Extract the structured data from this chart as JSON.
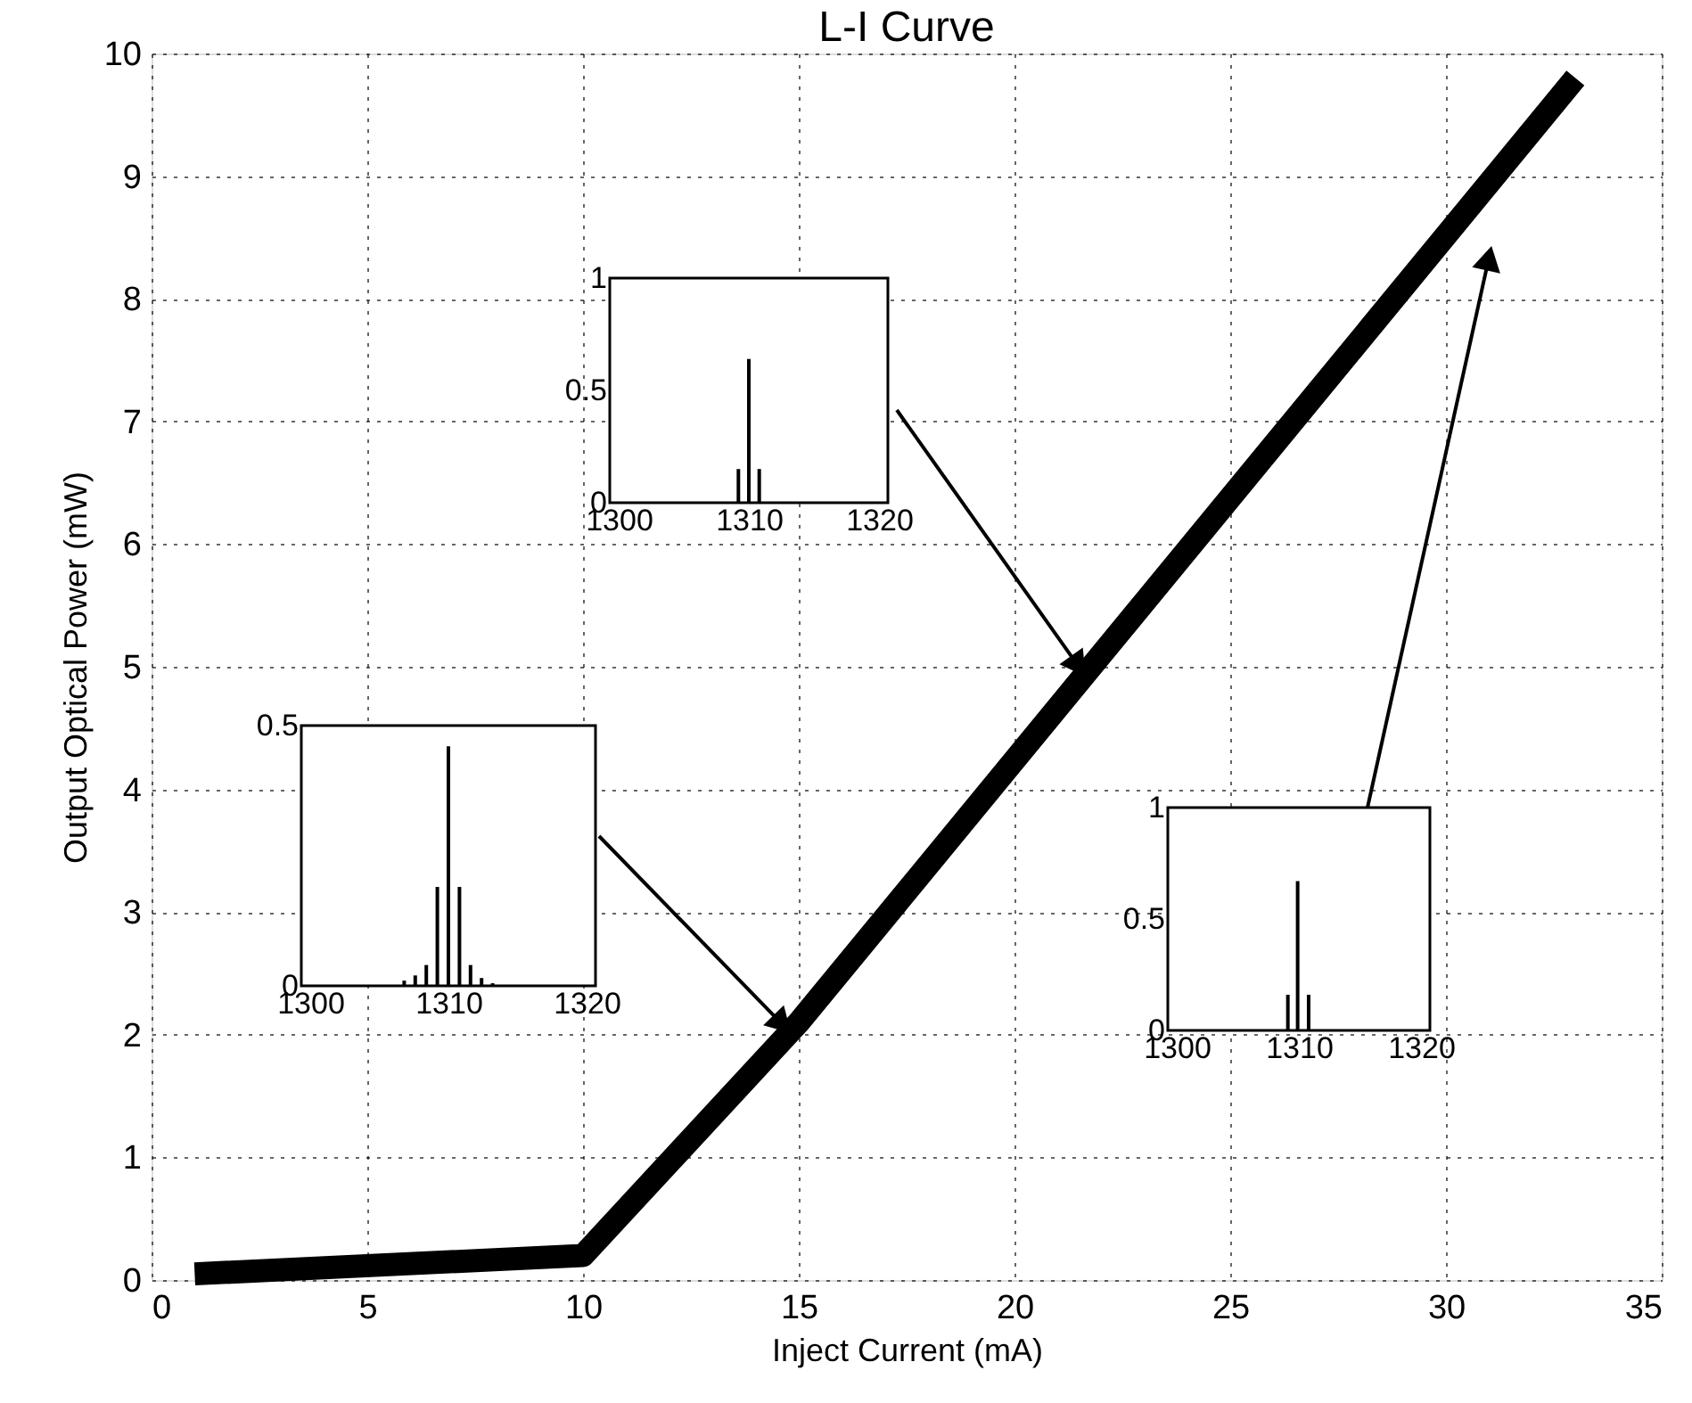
{
  "chart_data": [
    {
      "type": "line",
      "title": "L-I Curve",
      "xlabel": "Inject Current (mA)",
      "ylabel": "Output Optical Power (mW)",
      "series": [
        {
          "x": [
            1,
            10,
            15,
            33
          ],
          "values": [
            0.05,
            0.2,
            2.1,
            9.8
          ],
          "color": "#000000"
        }
      ],
      "xlim": [
        0,
        35
      ],
      "xticks": [
        0,
        5,
        10,
        15,
        20,
        25,
        30,
        35
      ],
      "ylim": [
        0,
        10
      ],
      "yticks": [
        0,
        1,
        2,
        3,
        4,
        5,
        6,
        7,
        8,
        9,
        10
      ],
      "grid": true
    },
    {
      "type": "bar",
      "x": [
        1306.8,
        1307.6,
        1308.4,
        1309.2,
        1310,
        1310.8,
        1311.6,
        1312.4,
        1313.2
      ],
      "values": [
        0.01,
        0.02,
        0.04,
        0.19,
        0.46,
        0.19,
        0.04,
        0.015,
        0.005
      ],
      "color": "#000000",
      "xlim": [
        1300,
        1320
      ],
      "xticks": [
        1300,
        1310,
        1320
      ],
      "ylim": [
        0,
        0.5
      ],
      "yticks": [
        0,
        0.5
      ]
    },
    {
      "type": "bar",
      "x": [
        1309.2,
        1310,
        1310.8
      ],
      "values": [
        0.15,
        0.64,
        0.15
      ],
      "color": "#000000",
      "xlim": [
        1300,
        1320
      ],
      "xticks": [
        1300,
        1310,
        1320
      ],
      "ylim": [
        0,
        1
      ],
      "yticks": [
        0,
        0.5,
        1
      ]
    },
    {
      "type": "bar",
      "x": [
        1309.1,
        1309.9,
        1310.8
      ],
      "values": [
        0.16,
        0.67,
        0.16
      ],
      "color": "#000000",
      "xlim": [
        1300,
        1320
      ],
      "xticks": [
        1300,
        1310,
        1320
      ],
      "ylim": [
        0,
        1
      ],
      "yticks": [
        0,
        0.5,
        1
      ]
    }
  ]
}
